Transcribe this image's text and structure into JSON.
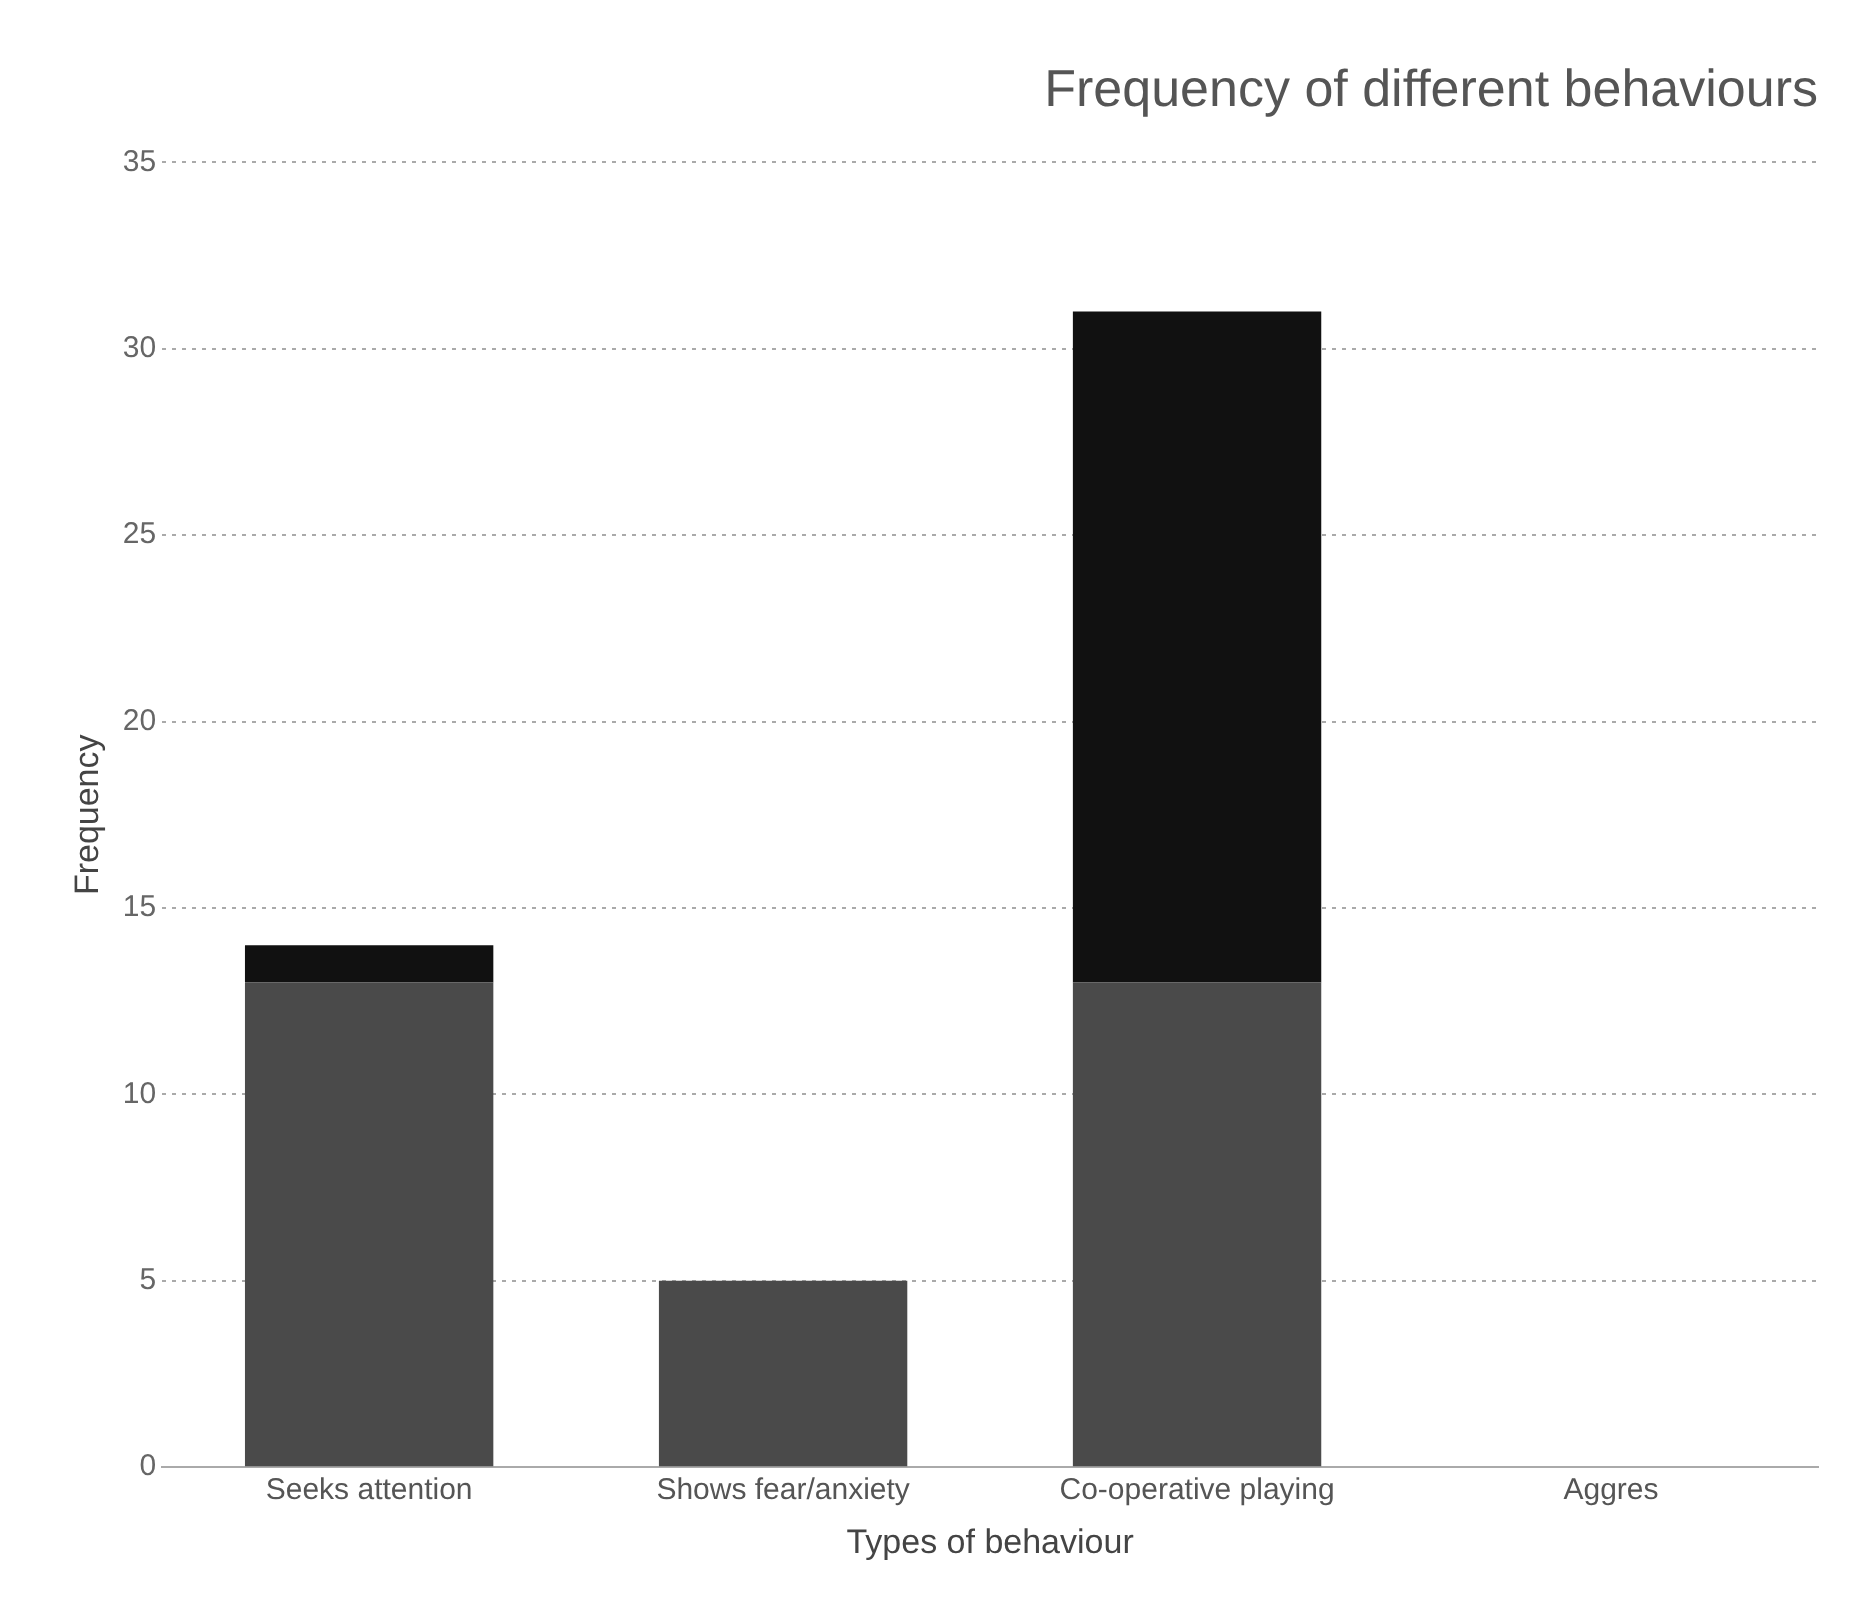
{
  "chart_data": {
    "type": "bar",
    "title": "Frequency of different behaviours",
    "xlabel": "Types of behaviour",
    "ylabel": "Frequency",
    "categories": [
      "Seeks attention",
      "Shows fear/anxiety",
      "Co-operative playing",
      "Aggres"
    ],
    "stacked": true,
    "series": [
      {
        "color": "#4a4a4a",
        "values": [
          13,
          5,
          13,
          null
        ]
      },
      {
        "color": "#111111",
        "values": [
          1,
          0,
          18,
          null
        ]
      }
    ],
    "ylim": [
      0,
      35
    ],
    "yticks": [
      0,
      5,
      10,
      15,
      20,
      25,
      30,
      35
    ],
    "grid": "y",
    "legend": false
  }
}
